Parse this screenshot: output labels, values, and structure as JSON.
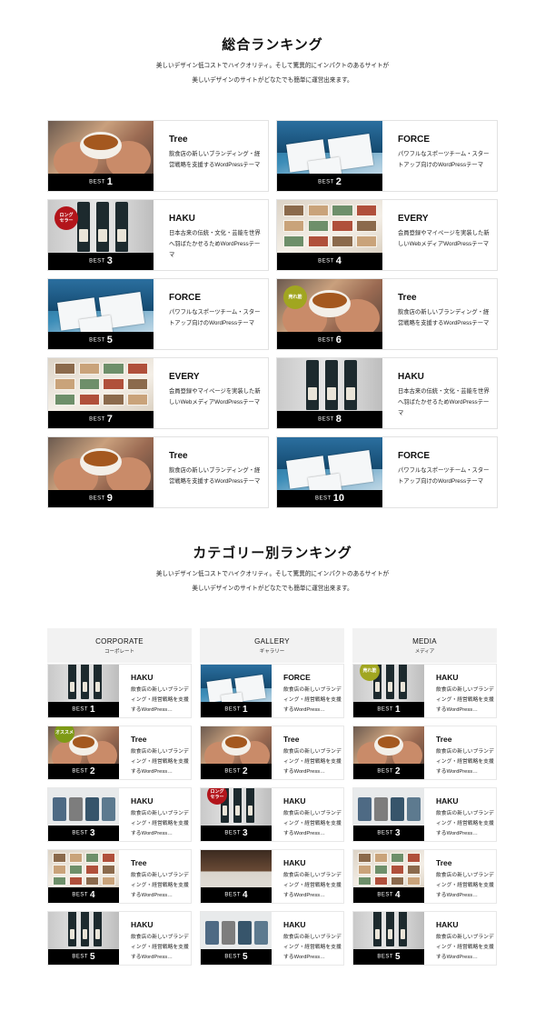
{
  "overall": {
    "title": "総合ランキング",
    "desc_line1": "美しいデザイン低コストでハイクオリティ。そして驚異的にインパクトのあるサイトが",
    "desc_line2": "美しいデザインのサイトがどなたでも簡単に運営出来ます。",
    "items": [
      {
        "rank": "1",
        "title": "Tree",
        "desc": "飲食店の新しいブランディング・経営戦略を支援するWordPressテーマ",
        "art": "tree",
        "badge": ""
      },
      {
        "rank": "2",
        "title": "FORCE",
        "desc": "パワフルなスポーツチーム・スタートアップ向けのWordPressテーマ",
        "art": "force",
        "badge": ""
      },
      {
        "rank": "3",
        "title": "HAKU",
        "desc": "日本古来の伝統・文化・芸能を世界へ羽ばたかせるためWordPressテーマ",
        "art": "haku",
        "badge": "ロング\nセラー",
        "badge_color": "red"
      },
      {
        "rank": "4",
        "title": "EVERY",
        "desc": "会員登録やマイページを実装した新しいWebメディアWordPressテーマ",
        "art": "every",
        "badge": ""
      },
      {
        "rank": "5",
        "title": "FORCE",
        "desc": "パワフルなスポーツチーム・スタートアップ向けのWordPressテーマ",
        "art": "force",
        "badge": ""
      },
      {
        "rank": "6",
        "title": "Tree",
        "desc": "飲食店の新しいブランディング・経営戦略を支援するWordPressテーマ",
        "art": "tree",
        "badge": "売れ筋",
        "badge_color": "green"
      },
      {
        "rank": "7",
        "title": "EVERY",
        "desc": "会員登録やマイページを実装した新しいWebメディアWordPressテーマ",
        "art": "every",
        "badge": ""
      },
      {
        "rank": "8",
        "title": "HAKU",
        "desc": "日本古来の伝統・文化・芸能を世界へ羽ばたかせるためWordPressテーマ",
        "art": "haku",
        "badge": ""
      },
      {
        "rank": "9",
        "title": "Tree",
        "desc": "飲食店の新しいブランディング・経営戦略を支援するWordPressテーマ",
        "art": "tree",
        "badge": ""
      },
      {
        "rank": "10",
        "title": "FORCE",
        "desc": "パワフルなスポーツチーム・スタートアップ向けのWordPressテーマ",
        "art": "force",
        "badge": ""
      }
    ]
  },
  "category": {
    "title": "カテゴリー別ランキング",
    "desc_line1": "美しいデザイン低コストでハイクオリティ。そして驚異的にインパクトのあるサイトが",
    "desc_line2": "美しいデザインのサイトがどなたでも簡単に運営出来ます。",
    "best_word": "BEST",
    "columns": [
      {
        "en": "CORPORATE",
        "ja": "コーポレート",
        "items": [
          {
            "rank": "1",
            "title": "HAKU",
            "desc": "飲食店の新しいブランディング・経営戦略を支援するWordPress…",
            "art": "haku",
            "badge": ""
          },
          {
            "rank": "2",
            "title": "Tree",
            "desc": "飲食店の新しいブランディング・経営戦略を支援するWordPress…",
            "art": "tree",
            "badge": "オススメ",
            "badge_color": "lime"
          },
          {
            "rank": "3",
            "title": "HAKU",
            "desc": "飲食店の新しいブランディング・経営戦略を支援するWordPress…",
            "art": "shirts",
            "badge": ""
          },
          {
            "rank": "4",
            "title": "Tree",
            "desc": "飲食店の新しいブランディング・経営戦略を支援するWordPress…",
            "art": "every",
            "badge": ""
          },
          {
            "rank": "5",
            "title": "HAKU",
            "desc": "飲食店の新しいブランディング・経営戦略を支援するWordPress…",
            "art": "haku",
            "badge": ""
          }
        ]
      },
      {
        "en": "GALLERY",
        "ja": "ギャラリー",
        "items": [
          {
            "rank": "1",
            "title": "FORCE",
            "desc": "飲食店の新しいブランディング・経営戦略を支援するWordPress…",
            "art": "force",
            "badge": ""
          },
          {
            "rank": "2",
            "title": "Tree",
            "desc": "飲食店の新しいブランディング・経営戦略を支援するWordPress…",
            "art": "tree",
            "badge": ""
          },
          {
            "rank": "3",
            "title": "HAKU",
            "desc": "飲食店の新しいブランディング・経営戦略を支援するWordPress…",
            "art": "haku",
            "badge": "ロング\nセラー",
            "badge_color": "red"
          },
          {
            "rank": "4",
            "title": "HAKU",
            "desc": "飲食店の新しいブランディング・経営戦略を支援するWordPress…",
            "art": "table",
            "badge": ""
          },
          {
            "rank": "5",
            "title": "HAKU",
            "desc": "飲食店の新しいブランディング・経営戦略を支援するWordPress…",
            "art": "shirts",
            "badge": ""
          }
        ]
      },
      {
        "en": "MEDIA",
        "ja": "メディア",
        "items": [
          {
            "rank": "1",
            "title": "HAKU",
            "desc": "飲食店の新しいブランディング・経営戦略を支援するWordPress…",
            "art": "haku",
            "badge": "売れ筋",
            "badge_color": "green"
          },
          {
            "rank": "2",
            "title": "Tree",
            "desc": "飲食店の新しいブランディング・経営戦略を支援するWordPress…",
            "art": "tree",
            "badge": ""
          },
          {
            "rank": "3",
            "title": "HAKU",
            "desc": "飲食店の新しいブランディング・経営戦略を支援するWordPress…",
            "art": "shirts",
            "badge": ""
          },
          {
            "rank": "4",
            "title": "Tree",
            "desc": "飲食店の新しいブランディング・経営戦略を支援するWordPress…",
            "art": "every",
            "badge": ""
          },
          {
            "rank": "5",
            "title": "HAKU",
            "desc": "飲食店の新しいブランディング・経営戦略を支援するWordPress…",
            "art": "haku",
            "badge": ""
          }
        ]
      }
    ]
  },
  "best_word": "BEST",
  "colors": {
    "badge_red": "#b3151b",
    "badge_green": "#a1a620",
    "badge_lime": "#7e9a16",
    "bar": "#000000"
  }
}
